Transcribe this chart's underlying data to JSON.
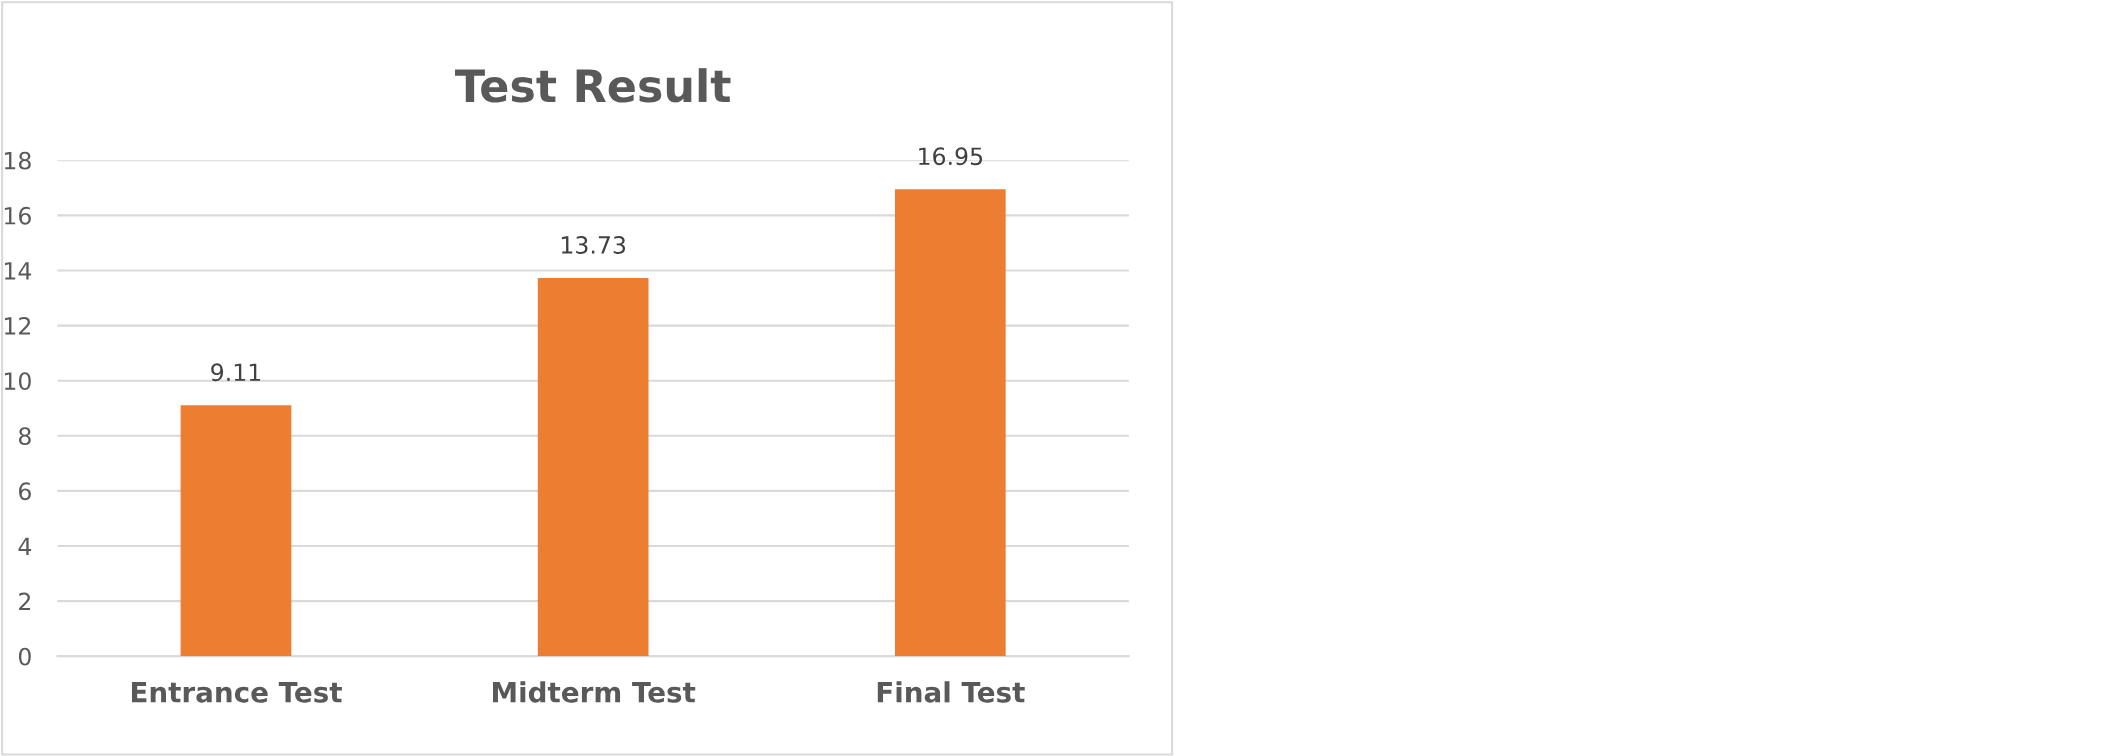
{
  "chart_data": {
    "type": "bar",
    "title": "Test Result",
    "categories": [
      "Entrance Test",
      "Midterm Test",
      "Final Test"
    ],
    "values": [
      9.11,
      13.73,
      16.95
    ],
    "color": "#ed7d31",
    "ylim": [
      0,
      18
    ],
    "yticks": [
      0,
      2,
      4,
      6,
      8,
      10,
      12,
      14,
      16,
      18
    ],
    "grid": "y",
    "data_labels": true
  }
}
